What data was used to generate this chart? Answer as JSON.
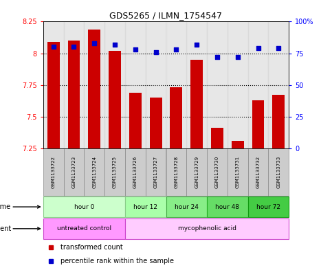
{
  "title": "GDS5265 / ILMN_1754547",
  "samples": [
    "GSM1133722",
    "GSM1133723",
    "GSM1133724",
    "GSM1133725",
    "GSM1133726",
    "GSM1133727",
    "GSM1133728",
    "GSM1133729",
    "GSM1133730",
    "GSM1133731",
    "GSM1133732",
    "GSM1133733"
  ],
  "transformed_count": [
    8.09,
    8.1,
    8.19,
    8.02,
    7.69,
    7.65,
    7.73,
    7.95,
    7.41,
    7.31,
    7.63,
    7.67
  ],
  "percentile_rank": [
    80,
    80,
    83,
    82,
    78,
    76,
    78,
    82,
    72,
    72,
    79,
    79
  ],
  "ylim_left": [
    7.25,
    8.25
  ],
  "ylim_right": [
    0,
    100
  ],
  "yticks_left": [
    7.25,
    7.5,
    7.75,
    8.0,
    8.25
  ],
  "yticks_right": [
    0,
    25,
    50,
    75,
    100
  ],
  "ytick_labels_left": [
    "7.25",
    "7.5",
    "7.75",
    "8",
    "8.25"
  ],
  "ytick_labels_right": [
    "0",
    "25",
    "50",
    "75",
    "100%"
  ],
  "hlines": [
    7.5,
    7.75,
    8.0
  ],
  "time_groups": [
    {
      "label": "hour 0",
      "start": 0,
      "end": 4,
      "color": "#ccffcc",
      "edgecolor": "#88cc88"
    },
    {
      "label": "hour 12",
      "start": 4,
      "end": 6,
      "color": "#aaffaa",
      "edgecolor": "#88cc88"
    },
    {
      "label": "hour 24",
      "start": 6,
      "end": 8,
      "color": "#88ee88",
      "edgecolor": "#44aa44"
    },
    {
      "label": "hour 48",
      "start": 8,
      "end": 10,
      "color": "#66dd66",
      "edgecolor": "#22aa22"
    },
    {
      "label": "hour 72",
      "start": 10,
      "end": 12,
      "color": "#44cc44",
      "edgecolor": "#119911"
    }
  ],
  "agent_groups": [
    {
      "label": "untreated control",
      "start": 0,
      "end": 4,
      "color": "#ff99ff",
      "edgecolor": "#cc44cc"
    },
    {
      "label": "mycophenolic acid",
      "start": 4,
      "end": 12,
      "color": "#ffccff",
      "edgecolor": "#cc44cc"
    }
  ],
  "sample_box_color": "#cccccc",
  "sample_box_edge": "#888888",
  "bar_color": "#cc0000",
  "dot_color": "#0000cc",
  "bar_bottom": 7.25,
  "background_color": "#ffffff",
  "grid_color": "#000000",
  "legend_items": [
    "transformed count",
    "percentile rank within the sample"
  ]
}
